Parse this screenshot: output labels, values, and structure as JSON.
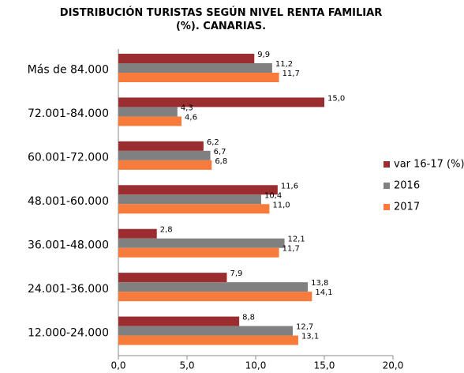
{
  "chart_data": {
    "type": "hbar",
    "title": "DISTRIBUCIÓN TURISTAS SEGÚN NIVEL RENTA FAMILIAR (%). CANARIAS.",
    "categories": [
      "Más de 84.000",
      "72.001-84.000",
      "60.001-72.000",
      "48.001-60.000",
      "36.001-48.000",
      "24.001-36.000",
      "12.000-24.000"
    ],
    "series": [
      {
        "name": "var 16-17 (%)",
        "color": "#9b2d30",
        "values": [
          9.9,
          15.0,
          6.2,
          11.6,
          2.8,
          7.9,
          8.8
        ],
        "value_labels": [
          "9,9",
          "15,0",
          "6,2",
          "11,6",
          "2,8",
          "7,9",
          "8,8"
        ]
      },
      {
        "name": "2016",
        "color": "#808080",
        "values": [
          11.2,
          4.3,
          6.7,
          10.4,
          12.1,
          13.8,
          12.7
        ],
        "value_labels": [
          "11,2",
          "4,3",
          "6,7",
          "10,4",
          "12,1",
          "13,8",
          "12,7"
        ]
      },
      {
        "name": "2017",
        "color": "#f77b3a",
        "values": [
          11.7,
          4.6,
          6.8,
          11.0,
          11.7,
          14.1,
          13.1
        ],
        "value_labels": [
          "11,7",
          "4,6",
          "6,8",
          "11,0",
          "11,7",
          "14,1",
          "13,1"
        ]
      }
    ],
    "xlim": [
      0,
      20
    ],
    "xticks": [
      {
        "value": 0,
        "label": "0,0"
      },
      {
        "value": 5,
        "label": "5,0"
      },
      {
        "value": 10,
        "label": "10,0"
      },
      {
        "value": 15,
        "label": "15,0"
      },
      {
        "value": 20,
        "label": "20,0"
      }
    ],
    "grid": false,
    "legend": "right"
  }
}
